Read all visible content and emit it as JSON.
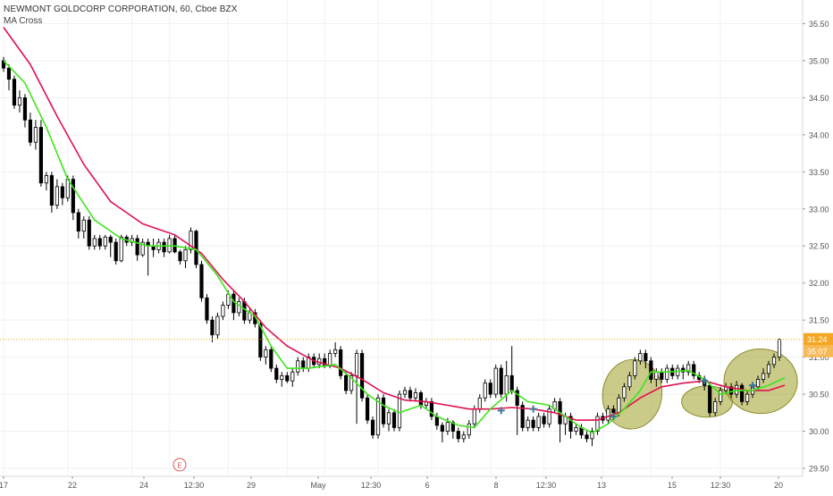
{
  "header": {
    "title": "NEWMONT GOLDCORP CORPORATION, 60, Cboe BZX",
    "indicator": "MA Cross"
  },
  "badges": {
    "last_price": "31.24",
    "countdown": "35:07",
    "earnings_marker": "E"
  },
  "colors": {
    "up_candle": "#ffffff",
    "down_candle": "#000000",
    "fast_ma": "#3ee51c",
    "slow_ma": "#e0114f",
    "price_line": "#f5a623",
    "highlight_fill": "#a6a63a",
    "cross_marker": "#3d7a9a",
    "earnings_marker": "#e05050"
  },
  "chart_data": {
    "type": "candlestick",
    "y_axis": {
      "position": "right",
      "range": [
        29.45,
        35.65
      ],
      "ticks": [
        "35.50",
        "35.00",
        "34.50",
        "34.00",
        "33.50",
        "33.00",
        "32.50",
        "32.00",
        "31.50",
        "31.00",
        "30.50",
        "30.00",
        "29.50"
      ]
    },
    "x_axis": {
      "ticks": [
        "17",
        "22",
        "24",
        "12:30",
        "29",
        "May",
        "12:30",
        "6",
        "8",
        "12:30",
        "13",
        "15",
        "12:30",
        "20"
      ]
    },
    "last_price": 31.24,
    "candles": [
      [
        35.0,
        34.9,
        35.05,
        34.85
      ],
      [
        34.9,
        34.75,
        34.95,
        34.6
      ],
      [
        34.75,
        34.4,
        34.8,
        34.35
      ],
      [
        34.4,
        34.5,
        34.6,
        34.3
      ],
      [
        34.5,
        34.2,
        34.55,
        34.1
      ],
      [
        34.2,
        33.9,
        34.3,
        33.85
      ],
      [
        33.9,
        34.1,
        34.2,
        33.8
      ],
      [
        34.1,
        33.35,
        34.2,
        33.3
      ],
      [
        33.35,
        33.45,
        33.5,
        33.25
      ],
      [
        33.45,
        33.05,
        33.5,
        32.95
      ],
      [
        33.05,
        33.3,
        33.4,
        33.0
      ],
      [
        33.3,
        33.15,
        33.35,
        33.05
      ],
      [
        33.15,
        33.4,
        33.45,
        33.1
      ],
      [
        33.4,
        32.95,
        33.45,
        32.85
      ],
      [
        32.95,
        32.7,
        33.0,
        32.6
      ],
      [
        32.7,
        32.85,
        32.9,
        32.6
      ],
      [
        32.85,
        32.5,
        32.9,
        32.45
      ],
      [
        32.5,
        32.6,
        32.65,
        32.45
      ],
      [
        32.6,
        32.5,
        32.65,
        32.45
      ],
      [
        32.5,
        32.62,
        32.65,
        32.45
      ],
      [
        32.62,
        32.55,
        32.65,
        32.35
      ],
      [
        32.55,
        32.3,
        32.6,
        32.25
      ],
      [
        32.3,
        32.62,
        32.65,
        32.28
      ],
      [
        32.62,
        32.55,
        32.65,
        32.5
      ],
      [
        32.55,
        32.6,
        32.65,
        32.5
      ],
      [
        32.6,
        32.38,
        32.65,
        32.3
      ],
      [
        32.38,
        32.55,
        32.6,
        32.35
      ],
      [
        32.55,
        32.5,
        32.6,
        32.1
      ],
      [
        32.5,
        32.45,
        32.6,
        32.35
      ],
      [
        32.45,
        32.55,
        32.6,
        32.4
      ],
      [
        32.55,
        32.42,
        32.6,
        32.35
      ],
      [
        32.42,
        32.6,
        32.65,
        32.4
      ],
      [
        32.6,
        32.42,
        32.65,
        32.4
      ],
      [
        32.42,
        32.3,
        32.45,
        32.25
      ],
      [
        32.3,
        32.45,
        32.5,
        32.2
      ],
      [
        32.45,
        32.7,
        32.75,
        32.4
      ],
      [
        32.7,
        32.25,
        32.72,
        32.2
      ],
      [
        32.25,
        31.8,
        32.3,
        31.75
      ],
      [
        31.8,
        31.5,
        31.85,
        31.45
      ],
      [
        31.5,
        31.3,
        31.55,
        31.2
      ],
      [
        31.3,
        31.55,
        31.6,
        31.25
      ],
      [
        31.55,
        31.7,
        31.75,
        31.5
      ],
      [
        31.7,
        31.85,
        31.9,
        31.65
      ],
      [
        31.85,
        31.6,
        31.9,
        31.5
      ],
      [
        31.6,
        31.75,
        31.8,
        31.55
      ],
      [
        31.75,
        31.5,
        31.8,
        31.45
      ],
      [
        31.5,
        31.6,
        31.65,
        31.45
      ],
      [
        31.6,
        31.45,
        31.65,
        31.4
      ],
      [
        31.45,
        31.0,
        31.5,
        30.95
      ],
      [
        31.0,
        31.1,
        31.15,
        30.9
      ],
      [
        31.1,
        30.85,
        31.15,
        30.8
      ],
      [
        30.85,
        30.7,
        30.9,
        30.65
      ],
      [
        30.7,
        30.75,
        30.8,
        30.6
      ],
      [
        30.75,
        30.68,
        30.8,
        30.65
      ],
      [
        30.68,
        30.8,
        30.85,
        30.6
      ],
      [
        30.8,
        30.95,
        31.0,
        30.75
      ],
      [
        30.95,
        30.85,
        31.0,
        30.8
      ],
      [
        30.85,
        31.0,
        31.05,
        30.8
      ],
      [
        31.0,
        30.9,
        31.05,
        30.85
      ],
      [
        30.9,
        30.98,
        31.05,
        30.85
      ],
      [
        30.98,
        30.88,
        31.05,
        30.85
      ],
      [
        30.88,
        31.05,
        31.1,
        30.85
      ],
      [
        31.05,
        31.1,
        31.2,
        31.0
      ],
      [
        31.1,
        30.75,
        31.15,
        30.7
      ],
      [
        30.75,
        30.55,
        30.8,
        30.5
      ],
      [
        30.55,
        30.75,
        30.8,
        30.5
      ],
      [
        30.75,
        31.05,
        31.1,
        30.1
      ],
      [
        31.05,
        30.45,
        31.1,
        30.4
      ],
      [
        30.45,
        30.15,
        30.5,
        30.1
      ],
      [
        30.15,
        29.95,
        30.2,
        29.9
      ],
      [
        29.95,
        30.45,
        30.5,
        29.9
      ],
      [
        30.45,
        30.1,
        30.5,
        30.05
      ],
      [
        30.1,
        30.25,
        30.3,
        30.0
      ],
      [
        30.25,
        30.05,
        30.3,
        30.0
      ],
      [
        30.05,
        30.5,
        30.55,
        30.0
      ],
      [
        30.5,
        30.55,
        30.6,
        30.45
      ],
      [
        30.55,
        30.45,
        30.6,
        30.4
      ],
      [
        30.45,
        30.52,
        30.58,
        30.4
      ],
      [
        30.52,
        30.35,
        30.55,
        30.3
      ],
      [
        30.35,
        30.4,
        30.45,
        30.3
      ],
      [
        30.4,
        30.2,
        30.45,
        30.15
      ],
      [
        30.2,
        30.08,
        30.25,
        30.02
      ],
      [
        30.08,
        30.0,
        30.12,
        29.85
      ],
      [
        30.0,
        30.12,
        30.18,
        29.95
      ],
      [
        30.12,
        30.0,
        30.15,
        29.9
      ],
      [
        30.0,
        29.9,
        30.05,
        29.85
      ],
      [
        29.9,
        29.95,
        30.0,
        29.85
      ],
      [
        29.95,
        30.1,
        30.15,
        29.9
      ],
      [
        30.1,
        30.3,
        30.35,
        30.05
      ],
      [
        30.3,
        30.45,
        30.5,
        30.25
      ],
      [
        30.45,
        30.65,
        30.7,
        30.4
      ],
      [
        30.65,
        30.5,
        30.7,
        30.45
      ],
      [
        30.5,
        30.85,
        30.9,
        30.45
      ],
      [
        30.85,
        30.5,
        30.9,
        30.45
      ],
      [
        30.5,
        30.75,
        30.95,
        30.4
      ],
      [
        30.75,
        30.55,
        31.15,
        30.5
      ],
      [
        30.55,
        30.35,
        30.6,
        29.95
      ],
      [
        30.35,
        30.05,
        30.4,
        30.0
      ],
      [
        30.05,
        30.15,
        30.2,
        30.0
      ],
      [
        30.15,
        30.05,
        30.2,
        30.0
      ],
      [
        30.05,
        30.2,
        30.25,
        30.0
      ],
      [
        30.2,
        30.1,
        30.25,
        30.05
      ],
      [
        30.1,
        30.3,
        30.35,
        30.05
      ],
      [
        30.3,
        30.4,
        30.45,
        30.25
      ],
      [
        30.4,
        30.1,
        30.45,
        29.85
      ],
      [
        30.1,
        30.2,
        30.25,
        29.95
      ],
      [
        30.2,
        30.0,
        30.25,
        29.9
      ],
      [
        30.0,
        30.05,
        30.1,
        29.95
      ],
      [
        30.05,
        29.95,
        30.1,
        29.9
      ],
      [
        29.95,
        29.9,
        30.0,
        29.85
      ],
      [
        29.9,
        30.0,
        30.05,
        29.8
      ],
      [
        30.0,
        30.2,
        30.25,
        29.95
      ],
      [
        30.2,
        30.15,
        30.25,
        30.1
      ],
      [
        30.15,
        30.3,
        30.35,
        30.1
      ],
      [
        30.3,
        30.25,
        30.35,
        30.15
      ],
      [
        30.25,
        30.45,
        30.5,
        30.2
      ],
      [
        30.45,
        30.6,
        30.65,
        30.4
      ],
      [
        30.6,
        30.75,
        30.8,
        30.55
      ],
      [
        30.75,
        30.95,
        31.0,
        30.7
      ],
      [
        30.95,
        31.05,
        31.1,
        30.9
      ],
      [
        31.05,
        30.95,
        31.1,
        30.85
      ],
      [
        30.95,
        30.7,
        31.0,
        30.65
      ],
      [
        30.7,
        30.8,
        30.85,
        30.6
      ],
      [
        30.8,
        30.7,
        30.85,
        30.65
      ],
      [
        30.7,
        30.85,
        30.9,
        30.65
      ],
      [
        30.85,
        30.75,
        30.9,
        30.7
      ],
      [
        30.75,
        30.85,
        30.9,
        30.7
      ],
      [
        30.85,
        30.8,
        30.9,
        30.7
      ],
      [
        30.8,
        30.9,
        30.95,
        30.75
      ],
      [
        30.9,
        30.75,
        30.95,
        30.7
      ],
      [
        30.75,
        30.7,
        30.8,
        30.65
      ],
      [
        30.7,
        30.62,
        30.75,
        30.55
      ],
      [
        30.62,
        30.25,
        30.65,
        30.2
      ],
      [
        30.25,
        30.4,
        30.45,
        30.2
      ],
      [
        30.4,
        30.55,
        30.6,
        30.35
      ],
      [
        30.55,
        30.6,
        30.65,
        30.5
      ],
      [
        30.6,
        30.5,
        30.65,
        30.45
      ],
      [
        30.5,
        30.62,
        30.68,
        30.45
      ],
      [
        30.62,
        30.4,
        30.65,
        30.35
      ],
      [
        30.4,
        30.5,
        30.55,
        30.35
      ],
      [
        30.5,
        30.6,
        30.65,
        30.45
      ],
      [
        30.6,
        30.7,
        30.75,
        30.55
      ],
      [
        30.7,
        30.78,
        30.85,
        30.65
      ],
      [
        30.78,
        30.9,
        30.95,
        30.72
      ],
      [
        30.9,
        31.0,
        31.05,
        30.85
      ],
      [
        31.0,
        31.24,
        31.25,
        30.95
      ]
    ],
    "fast_ma": [
      [
        0,
        35.0
      ],
      [
        4,
        34.7
      ],
      [
        8,
        34.1
      ],
      [
        12,
        33.4
      ],
      [
        17,
        32.85
      ],
      [
        22,
        32.6
      ],
      [
        27,
        32.5
      ],
      [
        32,
        32.5
      ],
      [
        36,
        32.45
      ],
      [
        40,
        32.1
      ],
      [
        43,
        31.75
      ],
      [
        47,
        31.55
      ],
      [
        50,
        31.15
      ],
      [
        53,
        30.85
      ],
      [
        57,
        30.85
      ],
      [
        62,
        30.9
      ],
      [
        65,
        30.72
      ],
      [
        68,
        30.5
      ],
      [
        71,
        30.35
      ],
      [
        74,
        30.25
      ],
      [
        78,
        30.35
      ],
      [
        81,
        30.2
      ],
      [
        85,
        30.08
      ],
      [
        88,
        30.05
      ],
      [
        91,
        30.3
      ],
      [
        95,
        30.55
      ],
      [
        98,
        30.4
      ],
      [
        102,
        30.35
      ],
      [
        105,
        30.2
      ],
      [
        108,
        30.05
      ],
      [
        110,
        29.98
      ],
      [
        113,
        30.1
      ],
      [
        116,
        30.3
      ],
      [
        119,
        30.55
      ],
      [
        121,
        30.8
      ],
      [
        124,
        30.8
      ],
      [
        128,
        30.82
      ],
      [
        131,
        30.7
      ],
      [
        134,
        30.5
      ],
      [
        137,
        30.55
      ],
      [
        140,
        30.55
      ],
      [
        143,
        30.62
      ],
      [
        146,
        30.72
      ]
    ],
    "slow_ma": [
      [
        0,
        35.45
      ],
      [
        5,
        34.95
      ],
      [
        10,
        34.25
      ],
      [
        15,
        33.6
      ],
      [
        20,
        33.1
      ],
      [
        26,
        32.8
      ],
      [
        32,
        32.65
      ],
      [
        37,
        32.4
      ],
      [
        41,
        32.05
      ],
      [
        45,
        31.75
      ],
      [
        49,
        31.4
      ],
      [
        53,
        31.15
      ],
      [
        58,
        30.95
      ],
      [
        63,
        30.85
      ],
      [
        67,
        30.7
      ],
      [
        71,
        30.52
      ],
      [
        75,
        30.42
      ],
      [
        79,
        30.4
      ],
      [
        83,
        30.35
      ],
      [
        87,
        30.3
      ],
      [
        91,
        30.3
      ],
      [
        95,
        30.32
      ],
      [
        99,
        30.3
      ],
      [
        103,
        30.25
      ],
      [
        107,
        30.15
      ],
      [
        111,
        30.15
      ],
      [
        115,
        30.25
      ],
      [
        119,
        30.45
      ],
      [
        123,
        30.6
      ],
      [
        127,
        30.65
      ],
      [
        131,
        30.68
      ],
      [
        135,
        30.6
      ],
      [
        139,
        30.55
      ],
      [
        143,
        30.55
      ],
      [
        146,
        30.62
      ]
    ],
    "ma_crosses": [
      [
        93,
        30.28
      ],
      [
        99,
        30.3
      ],
      [
        114,
        30.2
      ],
      [
        131,
        30.68
      ],
      [
        140,
        30.62
      ]
    ],
    "highlight_regions": [
      {
        "x": [
          111,
          124
        ],
        "y": [
          29.95,
          31.05
        ]
      },
      {
        "x": [
          130,
          133
        ],
        "y": [
          29.95,
          30.85
        ]
      },
      {
        "x": [
          136,
          147
        ],
        "y": [
          29.95,
          31.4
        ]
      }
    ]
  }
}
